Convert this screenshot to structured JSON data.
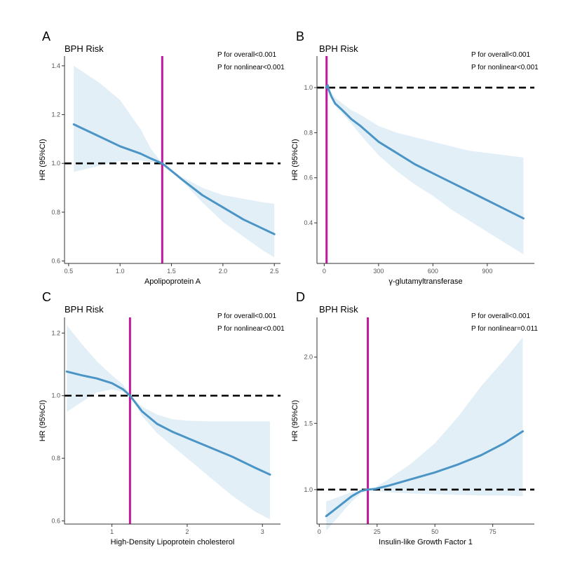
{
  "colors": {
    "line": "#4a95c6",
    "band": "#e3eff7",
    "vline": "#c4179e",
    "ref": "#000000",
    "axis": "#333333",
    "tick_text": "#555555"
  },
  "chart_data": [
    {
      "type": "line",
      "panel_letter": "A",
      "title": "BPH Risk",
      "annotations": [
        "P for overall<0.001",
        "P for nonlinear<0.001"
      ],
      "xlabel": "Apolipoprotein A",
      "ylabel": "HR (95%CI)",
      "xlim": [
        0.46,
        2.56
      ],
      "ylim": [
        0.59,
        1.44
      ],
      "xticks": [
        0.5,
        1.0,
        1.5,
        2.0,
        2.5
      ],
      "xtick_labels": [
        "0.5",
        "1.0",
        "1.5",
        "2.0",
        "2.5"
      ],
      "yticks": [
        0.6,
        0.8,
        1.0,
        1.2,
        1.4
      ],
      "ytick_labels": [
        "0.6",
        "0.8",
        "1.0",
        "1.2",
        "1.4"
      ],
      "reference_hr": 1.0,
      "reference_x": 1.41,
      "series": [
        {
          "name": "HR",
          "x": [
            0.55,
            0.8,
            1.0,
            1.2,
            1.3,
            1.41,
            1.6,
            1.8,
            2.0,
            2.2,
            2.4,
            2.5
          ],
          "y": [
            1.16,
            1.11,
            1.07,
            1.04,
            1.02,
            1.0,
            0.935,
            0.87,
            0.82,
            0.77,
            0.73,
            0.71
          ],
          "lower": [
            0.965,
            0.99,
            1.01,
            1.012,
            1.006,
            1.0,
            0.93,
            0.84,
            0.76,
            0.7,
            0.64,
            0.615
          ],
          "upper": [
            1.4,
            1.33,
            1.26,
            1.14,
            1.06,
            1.0,
            0.945,
            0.9,
            0.87,
            0.855,
            0.84,
            0.835
          ]
        }
      ]
    },
    {
      "type": "line",
      "panel_letter": "B",
      "title": "BPH Risk",
      "annotations": [
        "P for overall<0.001",
        "P for nonlinear<0.001"
      ],
      "xlabel": "γ-glutamyltransferase",
      "ylabel": "HR (95%CI)",
      "xlim": [
        -40,
        1160
      ],
      "ylim": [
        0.22,
        1.14
      ],
      "xticks": [
        0,
        300,
        600,
        900
      ],
      "xtick_labels": [
        "0",
        "300",
        "600",
        "900"
      ],
      "yticks": [
        0.4,
        0.6,
        0.8,
        1.0
      ],
      "ytick_labels": [
        "0.4",
        "0.6",
        "0.8",
        "1.0"
      ],
      "reference_hr": 1.0,
      "reference_x": 13,
      "series": [
        {
          "name": "HR",
          "x": [
            10,
            20,
            25,
            40,
            60,
            100,
            150,
            200,
            300,
            400,
            500,
            600,
            700,
            800,
            900,
            1000,
            1100
          ],
          "y": [
            1.0,
            1.01,
            0.99,
            0.96,
            0.93,
            0.9,
            0.86,
            0.83,
            0.76,
            0.71,
            0.66,
            0.62,
            0.58,
            0.54,
            0.5,
            0.46,
            0.42
          ],
          "lower": [
            1.0,
            1.0,
            0.985,
            0.955,
            0.92,
            0.885,
            0.84,
            0.79,
            0.7,
            0.63,
            0.57,
            0.52,
            0.46,
            0.41,
            0.36,
            0.31,
            0.26
          ],
          "upper": [
            1.0,
            1.02,
            1.005,
            0.975,
            0.955,
            0.93,
            0.9,
            0.88,
            0.83,
            0.8,
            0.78,
            0.76,
            0.74,
            0.72,
            0.71,
            0.7,
            0.69
          ]
        }
      ]
    },
    {
      "type": "line",
      "panel_letter": "C",
      "title": "BPH Risk",
      "annotations": [
        "P for overall<0.001",
        "P for nonlinear<0.001"
      ],
      "xlabel": "High-Density Lipoprotein cholesterol",
      "ylabel": "HR (95%CI)",
      "xlim": [
        0.37,
        3.24
      ],
      "ylim": [
        0.59,
        1.25
      ],
      "xticks": [
        1,
        2,
        3
      ],
      "xtick_labels": [
        "1",
        "2",
        "3"
      ],
      "yticks": [
        0.6,
        0.8,
        1.0,
        1.2
      ],
      "ytick_labels": [
        "0.6",
        "0.8",
        "1.0",
        "1.2"
      ],
      "reference_hr": 1.0,
      "reference_x": 1.24,
      "series": [
        {
          "name": "HR",
          "x": [
            0.4,
            0.6,
            0.8,
            1.0,
            1.15,
            1.24,
            1.4,
            1.6,
            1.8,
            2.0,
            2.3,
            2.6,
            2.9,
            3.1
          ],
          "y": [
            1.077,
            1.065,
            1.055,
            1.04,
            1.02,
            1.0,
            0.95,
            0.91,
            0.885,
            0.865,
            0.835,
            0.805,
            0.77,
            0.748
          ],
          "lower": [
            0.948,
            0.98,
            1.01,
            1.02,
            1.012,
            1.0,
            0.935,
            0.88,
            0.84,
            0.8,
            0.74,
            0.68,
            0.63,
            0.605
          ],
          "upper": [
            1.225,
            1.165,
            1.11,
            1.065,
            1.035,
            1.0,
            0.965,
            0.94,
            0.925,
            0.92,
            0.918,
            0.918,
            0.918,
            0.918
          ]
        }
      ]
    },
    {
      "type": "line",
      "panel_letter": "D",
      "title": "BPH Risk",
      "annotations": [
        "P for overall<0.001",
        "P for nonlinear=0.011"
      ],
      "xlabel": "Insulin-like Growth Factor 1",
      "ylabel": "HR (95%CI)",
      "xlim": [
        -1,
        93
      ],
      "ylim": [
        0.74,
        2.3
      ],
      "xticks": [
        0,
        25,
        50,
        75
      ],
      "xtick_labels": [
        "0",
        "25",
        "50",
        "75"
      ],
      "yticks": [
        1.0,
        1.5,
        2.0
      ],
      "ytick_labels": [
        "1.0",
        "1.5",
        "2.0"
      ],
      "reference_hr": 1.0,
      "reference_x": 21,
      "series": [
        {
          "name": "HR",
          "x": [
            3,
            6,
            10,
            14,
            18,
            21,
            24,
            30,
            40,
            50,
            60,
            70,
            80,
            88
          ],
          "y": [
            0.8,
            0.84,
            0.895,
            0.95,
            0.99,
            1.0,
            1.005,
            1.03,
            1.08,
            1.13,
            1.19,
            1.26,
            1.35,
            1.44
          ],
          "lower": [
            0.69,
            0.75,
            0.83,
            0.91,
            0.97,
            1.0,
            0.99,
            0.98,
            0.97,
            0.965,
            0.96,
            0.955,
            0.955,
            0.95
          ],
          "upper": [
            0.91,
            0.93,
            0.955,
            0.98,
            0.995,
            1.0,
            1.015,
            1.08,
            1.2,
            1.35,
            1.55,
            1.78,
            1.98,
            2.15
          ]
        }
      ]
    }
  ]
}
